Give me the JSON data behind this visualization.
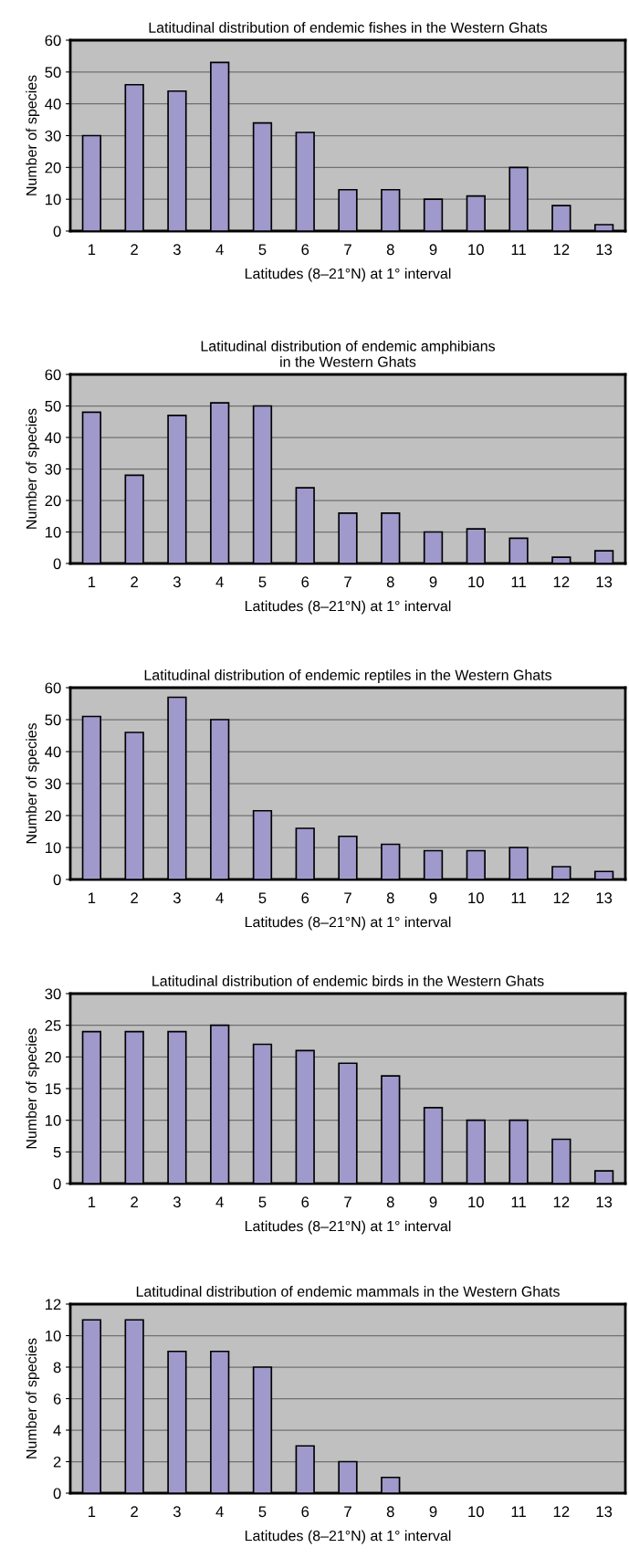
{
  "chart_data": [
    {
      "type": "bar",
      "title": "Latitudinal distribution of endemic fishes in the Western Ghats",
      "xlabel": "Latitudes (8–21°N) at 1° interval",
      "ylabel": "Number of species",
      "categories": [
        "1",
        "2",
        "3",
        "4",
        "5",
        "6",
        "7",
        "8",
        "9",
        "10",
        "11",
        "12",
        "13"
      ],
      "values": [
        30,
        46,
        44,
        53,
        34,
        31,
        13,
        13,
        10,
        11,
        20,
        8,
        2
      ],
      "color": "#9f99cc",
      "ylim": [
        0,
        60
      ],
      "yticks": [
        0,
        10,
        20,
        30,
        40,
        50,
        60
      ],
      "grid": "y"
    },
    {
      "type": "bar",
      "title": "Latitudinal distribution of endemic amphibians\nin the Western Ghats",
      "xlabel": "Latitudes (8–21°N) at 1° interval",
      "ylabel": "Number of species",
      "categories": [
        "1",
        "2",
        "3",
        "4",
        "5",
        "6",
        "7",
        "8",
        "9",
        "10",
        "11",
        "12",
        "13"
      ],
      "values": [
        48,
        28,
        47,
        51,
        50,
        24,
        16,
        16,
        10,
        11,
        8,
        2,
        4
      ],
      "color": "#9f99cc",
      "ylim": [
        0,
        60
      ],
      "yticks": [
        0,
        10,
        20,
        30,
        40,
        50,
        60
      ],
      "grid": "y"
    },
    {
      "type": "bar",
      "title": "Latitudinal distribution of endemic reptiles in the Western Ghats",
      "xlabel": "Latitudes (8–21°N) at 1° interval",
      "ylabel": "Number of species",
      "categories": [
        "1",
        "2",
        "3",
        "4",
        "5",
        "6",
        "7",
        "8",
        "9",
        "10",
        "11",
        "12",
        "13"
      ],
      "values": [
        51,
        46,
        57,
        50,
        21.5,
        16,
        13.5,
        11,
        9,
        9,
        10,
        4,
        2.5
      ],
      "color": "#9f99cc",
      "ylim": [
        0,
        60
      ],
      "yticks": [
        0,
        10,
        20,
        30,
        40,
        50,
        60
      ],
      "grid": "y"
    },
    {
      "type": "bar",
      "title": "Latitudinal distribution of endemic birds in the Western Ghats",
      "xlabel": "Latitudes (8–21°N) at 1° interval",
      "ylabel": "Number of species",
      "categories": [
        "1",
        "2",
        "3",
        "4",
        "5",
        "6",
        "7",
        "8",
        "9",
        "10",
        "11",
        "12",
        "13"
      ],
      "values": [
        24,
        24,
        24,
        25,
        22,
        21,
        19,
        17,
        12,
        10,
        10,
        7,
        2
      ],
      "color": "#9f99cc",
      "ylim": [
        0,
        30
      ],
      "yticks": [
        0,
        5,
        10,
        15,
        20,
        25,
        30
      ],
      "grid": "y"
    },
    {
      "type": "bar",
      "title": "Latitudinal distribution of endemic mammals in the Western Ghats",
      "xlabel": "Latitudes (8–21°N) at 1° interval",
      "ylabel": "Number of species",
      "categories": [
        "1",
        "2",
        "3",
        "4",
        "5",
        "6",
        "7",
        "8",
        "9",
        "10",
        "11",
        "12",
        "13"
      ],
      "values": [
        11,
        11,
        9,
        9,
        8,
        3,
        2,
        1,
        0,
        0,
        0,
        0,
        0
      ],
      "color": "#9f99cc",
      "ylim": [
        0,
        12
      ],
      "yticks": [
        0,
        2,
        4,
        6,
        8,
        10,
        12
      ],
      "grid": "y"
    }
  ]
}
